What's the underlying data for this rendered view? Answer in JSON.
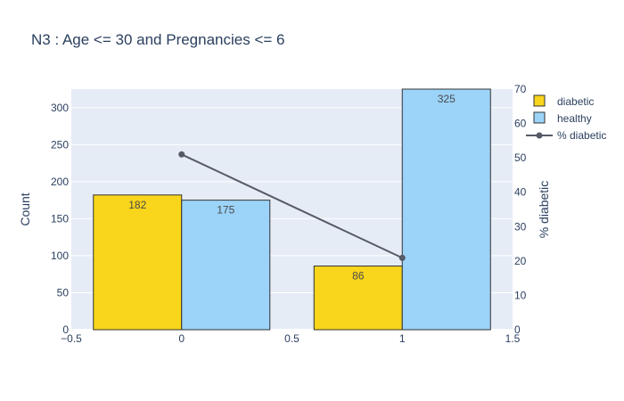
{
  "chart_data": {
    "type": "bar",
    "title": "N3 : Age <= 30 and Pregnancies <= 6",
    "xlabel": "",
    "ylabel": "Count",
    "y2label": "% diabetic",
    "x": [
      0,
      1
    ],
    "xlim": [
      -0.5,
      1.5
    ],
    "ylim": [
      0,
      325
    ],
    "y2lim": [
      0,
      70
    ],
    "x_ticks": [
      "−0.5",
      "0",
      "0.5",
      "1",
      "1.5"
    ],
    "y_ticks": [
      "0",
      "50",
      "100",
      "150",
      "200",
      "250",
      "300"
    ],
    "y2_ticks": [
      "0",
      "10",
      "20",
      "30",
      "40",
      "50",
      "60",
      "70"
    ],
    "series": [
      {
        "name": "diabetic",
        "type": "bar",
        "values": [
          182,
          86
        ],
        "labels": [
          "182",
          "86"
        ],
        "color": "#f9d51b"
      },
      {
        "name": "healthy",
        "type": "bar",
        "values": [
          175,
          325
        ],
        "labels": [
          "175",
          "325"
        ],
        "color": "#9cd3f8"
      },
      {
        "name": "% diabetic",
        "type": "line",
        "axis": "y2",
        "values": [
          51.0,
          20.9
        ],
        "color": "#555a66"
      }
    ],
    "legend_position": "top-right",
    "grid": true
  }
}
